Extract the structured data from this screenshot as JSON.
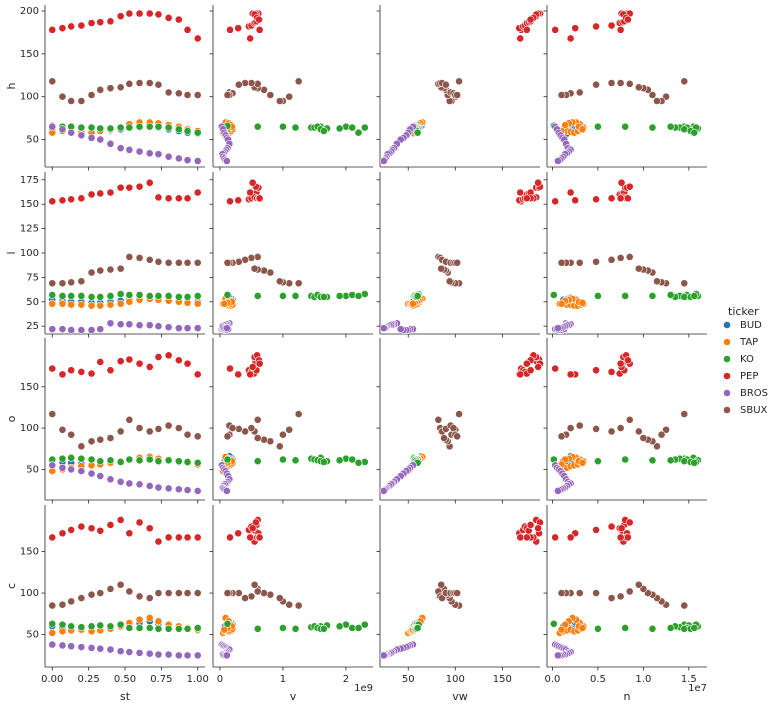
{
  "chart_data": {
    "type": "scatter",
    "x_vars": [
      "st",
      "v",
      "vw",
      "n"
    ],
    "y_vars": [
      "h",
      "l",
      "o",
      "c"
    ],
    "legend_title": "ticker",
    "legend": "right",
    "axes": {
      "st": {
        "lim": [
          -0.05,
          1.05
        ],
        "ticks": [
          {
            "value": 0,
            "label": "0.00"
          },
          {
            "value": 0.25,
            "label": "0.25"
          },
          {
            "value": 0.5,
            "label": "0.50"
          },
          {
            "value": 0.75,
            "label": "0.75"
          },
          {
            "value": 1,
            "label": "1.00"
          }
        ]
      },
      "v": {
        "lim": [
          -110000000,
          2430000000
        ],
        "ticks": [
          {
            "value": 0,
            "label": "0"
          },
          {
            "value": 1000000000,
            "label": "1"
          },
          {
            "value": 2000000000,
            "label": "2"
          }
        ],
        "offset": "1e9"
      },
      "vw": {
        "lim": [
          20,
          190
        ],
        "ticks": [
          50,
          100,
          150
        ]
      },
      "n": {
        "lim": [
          -600000,
          17000000
        ],
        "ticks": [
          {
            "value": 0,
            "label": "0.0"
          },
          {
            "value": 5000000,
            "label": "0.5"
          },
          {
            "value": 10000000,
            "label": "1.0"
          },
          {
            "value": 15000000,
            "label": "1.5"
          }
        ],
        "offset": "1e7"
      },
      "h": {
        "lim": [
          18,
          207
        ],
        "ticks": [
          50,
          100,
          150,
          200
        ]
      },
      "l": {
        "lim": [
          17,
          183
        ],
        "ticks": [
          25,
          50,
          75,
          100,
          125,
          150,
          175
        ]
      },
      "o": {
        "lim": [
          13,
          209
        ],
        "ticks": [
          50,
          100,
          150
        ]
      },
      "c": {
        "lim": [
          11,
          206
        ],
        "ticks": [
          50,
          100,
          150
        ]
      }
    },
    "series": [
      {
        "name": "BUD",
        "color": "#1f77b4",
        "st": [
          0,
          0.07,
          0.13,
          0.2,
          0.27,
          0.33,
          0.4,
          0.47,
          0.53,
          0.6,
          0.67,
          0.73,
          0.8,
          0.87,
          0.93,
          1
        ],
        "v": [
          80000000.0,
          120000000.0,
          150000000.0,
          170000000.0,
          140000000.0,
          130000000.0,
          160000000.0,
          190000000.0,
          200000000.0,
          180000000.0,
          150000000.0,
          130000000.0,
          110000000.0,
          140000000.0,
          160000000.0,
          120000000.0
        ],
        "vw": [
          58,
          57,
          56,
          55,
          54,
          55,
          57,
          59,
          61,
          63,
          64,
          62,
          60,
          58,
          56,
          55
        ],
        "n": [
          1200000.0,
          1600000.0,
          2000000.0,
          2200000.0,
          1900000.0,
          1800000.0,
          2100000.0,
          2500000.0,
          2700000.0,
          2400000.0,
          2000000.0,
          1700000.0,
          1500000.0,
          1900000.0,
          2200000.0,
          1600000.0
        ],
        "h": [
          62,
          61,
          61,
          60,
          59,
          60,
          61,
          62,
          64,
          65,
          66,
          64,
          62,
          60,
          58,
          57
        ],
        "l": [
          52,
          51,
          50,
          50,
          49,
          49,
          50,
          51,
          52,
          53,
          54,
          53,
          52,
          51,
          50,
          50
        ],
        "o": [
          60,
          59,
          58,
          57,
          56,
          57,
          58,
          60,
          62,
          64,
          66,
          63,
          61,
          59,
          58,
          56
        ],
        "c": [
          60,
          58,
          57,
          56,
          55,
          56,
          58,
          60,
          62,
          64,
          66,
          63,
          60,
          58,
          57,
          55
        ]
      },
      {
        "name": "TAP",
        "color": "#ff7f0e",
        "st": [
          0,
          0.07,
          0.13,
          0.2,
          0.27,
          0.33,
          0.4,
          0.47,
          0.53,
          0.6,
          0.67,
          0.73,
          0.8,
          0.87,
          0.93,
          1
        ],
        "v": [
          50000000.0,
          80000000.0,
          100000000.0,
          120000000.0,
          150000000.0,
          180000000.0,
          200000000.0,
          160000000.0,
          130000000.0,
          110000000.0,
          90000000.0,
          140000000.0,
          170000000.0,
          190000000.0,
          120000000.0,
          70000000.0
        ],
        "vw": [
          50,
          52,
          53,
          54,
          55,
          56,
          58,
          60,
          62,
          64,
          65,
          63,
          61,
          59,
          57,
          55
        ],
        "n": [
          800000.0,
          1200000.0,
          1600000.0,
          2000000.0,
          2400000.0,
          2800000.0,
          3200000.0,
          3400000.0,
          3000000.0,
          2600000.0,
          2200000.0,
          1800000.0,
          1400000.0,
          2900000.0,
          3300000.0,
          1000000.0
        ],
        "h": [
          58,
          60,
          60,
          59,
          58,
          60,
          62,
          64,
          68,
          70,
          70,
          69,
          67,
          65,
          62,
          60
        ],
        "l": [
          48,
          48,
          47,
          47,
          46,
          46,
          47,
          48,
          50,
          52,
          53,
          52,
          51,
          50,
          49,
          48
        ],
        "o": [
          48,
          50,
          52,
          54,
          55,
          56,
          58,
          60,
          62,
          64,
          65,
          63,
          62,
          60,
          58,
          56
        ],
        "c": [
          52,
          54,
          55,
          56,
          54,
          55,
          57,
          60,
          64,
          68,
          70,
          66,
          62,
          60,
          58,
          56
        ]
      },
      {
        "name": "KO",
        "color": "#2ca02c",
        "st": [
          0,
          0.07,
          0.13,
          0.2,
          0.27,
          0.33,
          0.4,
          0.47,
          0.53,
          0.6,
          0.67,
          0.73,
          0.8,
          0.87,
          0.93,
          1
        ],
        "v": [
          120000000.0,
          2000000000.0,
          1600000000.0,
          1450000000.0,
          1500000000.0,
          1700000000.0,
          1900000000.0,
          2300000000.0,
          2100000000.0,
          1550000000.0,
          1000000000.0,
          600000000.0,
          1200000000.0,
          1600000000.0,
          1650000000.0,
          2200000000.0
        ],
        "vw": [
          58,
          57,
          56,
          57,
          58,
          59,
          60,
          61,
          60,
          59,
          58,
          57,
          57,
          58,
          59,
          60
        ],
        "n": [
          150000.0,
          14500000.0,
          15500000.0,
          14000000.0,
          13500000.0,
          15000000.0,
          16000000.0,
          15800000.0,
          14800000.0,
          13000000.0,
          8000000.0,
          5000000.0,
          11000000.0,
          14500000.0,
          15200000.0,
          15600000.0
        ],
        "h": [
          66,
          65,
          65,
          64,
          64,
          63,
          63,
          64,
          64,
          65,
          65,
          65,
          64,
          62,
          60,
          58
        ],
        "l": [
          57,
          56,
          56,
          56,
          55,
          55,
          56,
          58,
          57,
          57,
          56,
          56,
          56,
          55,
          55,
          56
        ],
        "o": [
          62,
          63,
          64,
          63,
          62,
          60,
          61,
          59,
          62,
          61,
          62,
          60,
          61,
          60,
          59,
          58
        ],
        "c": [
          63,
          62,
          60,
          59,
          60,
          61,
          60,
          62,
          58,
          58,
          58,
          57,
          57,
          57,
          57,
          58
        ]
      },
      {
        "name": "PEP",
        "color": "#d62728",
        "st": [
          0,
          0.07,
          0.13,
          0.2,
          0.27,
          0.33,
          0.4,
          0.47,
          0.53,
          0.6,
          0.67,
          0.73,
          0.8,
          0.87,
          0.93,
          1
        ],
        "v": [
          160000000.0,
          290000000.0,
          460000000.0,
          500000000.0,
          540000000.0,
          560000000.0,
          580000000.0,
          600000000.0,
          610000000.0,
          570000000.0,
          520000000.0,
          550000000.0,
          590000000.0,
          620000000.0,
          630000000.0,
          480000000.0
        ],
        "vw": [
          170,
          168,
          172,
          174,
          176,
          178,
          180,
          186,
          189,
          190,
          188,
          186,
          183,
          180,
          176,
          169
        ],
        "n": [
          300000.0,
          2500000.0,
          4800000.0,
          6500000.0,
          7400000.0,
          7700000.0,
          7900000.0,
          8000000.0,
          8200000.0,
          8500000.0,
          7600000.0,
          7800000.0,
          8100000.0,
          8300000.0,
          7500000.0,
          2000000.0
        ],
        "h": [
          178,
          180,
          182,
          183,
          186,
          187,
          188,
          194,
          197,
          197,
          197,
          196,
          192,
          190,
          178,
          168
        ],
        "l": [
          153,
          154,
          155,
          156,
          160,
          161,
          162,
          167,
          167,
          168,
          172,
          157,
          156,
          156,
          156,
          162
        ],
        "o": [
          172,
          165,
          170,
          168,
          166,
          180,
          170,
          181,
          183,
          178,
          174,
          186,
          188,
          182,
          178,
          165
        ],
        "c": [
          167,
          172,
          176,
          180,
          178,
          175,
          182,
          188,
          172,
          185,
          178,
          162,
          167,
          167,
          167,
          167
        ]
      },
      {
        "name": "BROS",
        "color": "#9467bd",
        "st": [
          0,
          0.07,
          0.13,
          0.2,
          0.27,
          0.33,
          0.4,
          0.47,
          0.53,
          0.6,
          0.67,
          0.73,
          0.8,
          0.87,
          0.93,
          1
        ],
        "v": [
          30000000.0,
          50000000.0,
          70000000.0,
          90000000.0,
          110000000.0,
          130000000.0,
          150000000.0,
          120000000.0,
          100000000.0,
          80000000.0,
          60000000.0,
          40000000.0,
          50000000.0,
          70000000.0,
          90000000.0,
          110000000.0
        ],
        "vw": [
          55,
          52,
          50,
          48,
          45,
          42,
          38,
          35,
          33,
          32,
          30,
          28,
          27,
          26,
          25,
          24
        ],
        "n": [
          300000.0,
          500000.0,
          700000.0,
          900000.0,
          1100000.0,
          1300000.0,
          1500000.0,
          1700000.0,
          2000000.0,
          1800000.0,
          1600000.0,
          1400000.0,
          1200000.0,
          1000000.0,
          800000.0,
          600000.0
        ],
        "h": [
          65,
          62,
          58,
          55,
          52,
          50,
          45,
          40,
          38,
          36,
          34,
          33,
          30,
          28,
          26,
          25
        ],
        "l": [
          22,
          22,
          21,
          21,
          21,
          22,
          28,
          27,
          27,
          26,
          26,
          25,
          24,
          23,
          23,
          23
        ],
        "o": [
          55,
          52,
          50,
          48,
          45,
          42,
          38,
          35,
          33,
          32,
          30,
          28,
          27,
          26,
          25,
          24
        ],
        "c": [
          38,
          37,
          36,
          35,
          34,
          33,
          32,
          30,
          29,
          28,
          27,
          26,
          26,
          25,
          25,
          25
        ]
      },
      {
        "name": "SBUX",
        "color": "#8c564b",
        "st": [
          0,
          0.07,
          0.13,
          0.2,
          0.27,
          0.33,
          0.4,
          0.47,
          0.53,
          0.6,
          0.67,
          0.73,
          0.8,
          0.87,
          0.93,
          1
        ],
        "v": [
          1250000000.0,
          1100000000.0,
          1000000000.0,
          950000000.0,
          800000000.0,
          700000000.0,
          600000000.0,
          550000000.0,
          600000000.0,
          500000000.0,
          400000000.0,
          300000000.0,
          150000000.0,
          200000000.0,
          150000000.0,
          120000000.0
        ],
        "vw": [
          104,
          100,
          96,
          94,
          92,
          90,
          88,
          85,
          82,
          84,
          86,
          90,
          95,
          98,
          100,
          102
        ],
        "n": [
          14500000.0,
          12500000.0,
          12000000.0,
          11500000.0,
          11000000.0,
          10500000.0,
          10000000.0,
          9500000.0,
          8500000.0,
          7500000.0,
          6500000.0,
          4800000.0,
          3000000.0,
          2000000.0,
          1500000.0,
          1000000.0
        ],
        "h": [
          118,
          100,
          95,
          95,
          102,
          108,
          110,
          111,
          115,
          116,
          116,
          114,
          105,
          104,
          102,
          102
        ],
        "l": [
          69,
          69,
          70,
          71,
          80,
          82,
          83,
          84,
          96,
          95,
          93,
          91,
          90,
          90,
          90,
          90
        ],
        "o": [
          117,
          98,
          92,
          78,
          84,
          86,
          88,
          96,
          110,
          100,
          96,
          99,
          103,
          100,
          92,
          90
        ],
        "c": [
          85,
          86,
          90,
          94,
          98,
          100,
          105,
          110,
          102,
          96,
          94,
          100,
          100,
          100,
          100,
          100
        ]
      }
    ]
  }
}
